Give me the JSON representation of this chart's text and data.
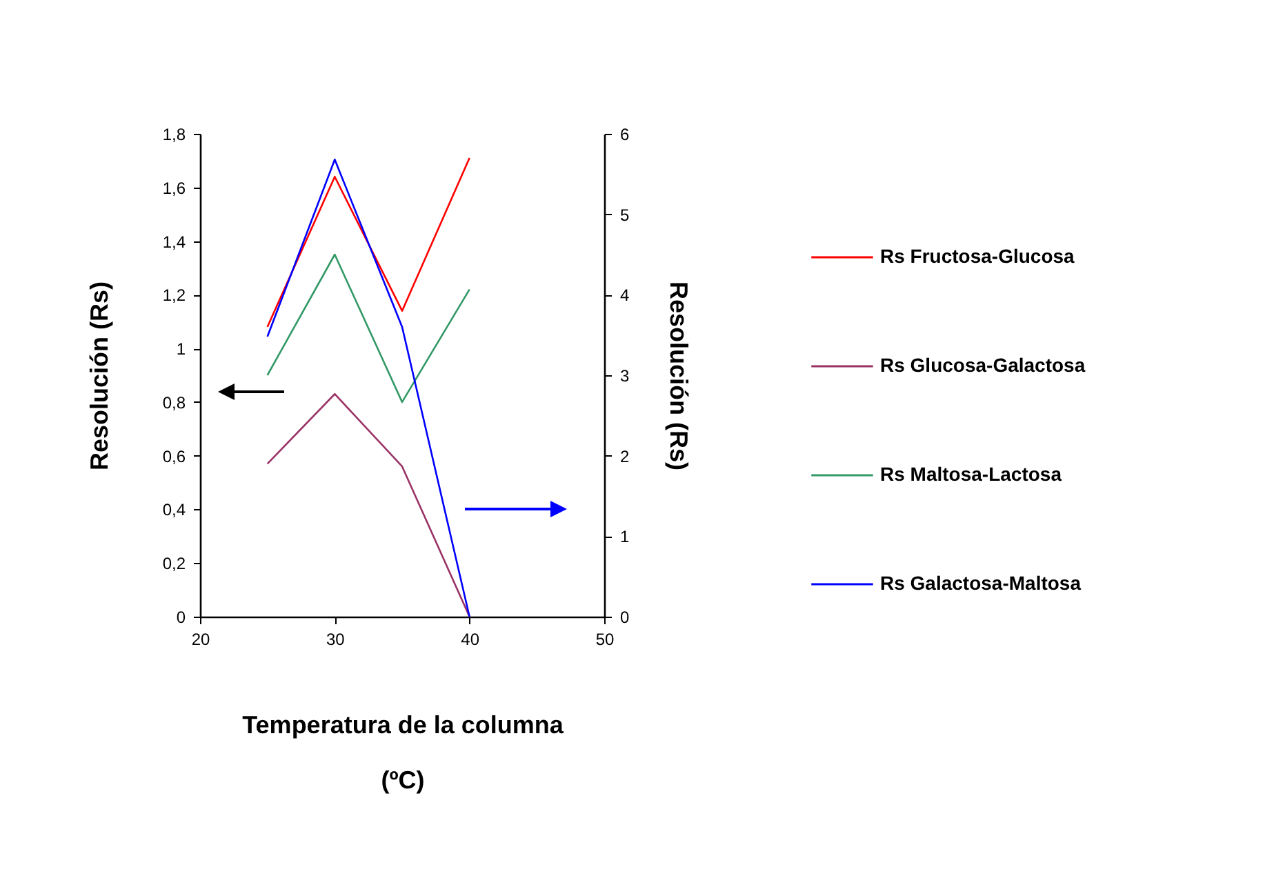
{
  "chart_data": {
    "type": "line",
    "xlabel": "Temperatura de la columna (ºC)",
    "ylabel": "Resolución (Rs)",
    "y2label": "Resolución (Rs)",
    "x": [
      25,
      30,
      35,
      40
    ],
    "series": [
      {
        "name": "Rs Fructosa-Glucosa",
        "color": "#ff0000",
        "values": [
          1.08,
          1.64,
          1.14,
          1.71
        ]
      },
      {
        "name": "Rs Glucosa-Galactosa",
        "color": "#993366",
        "values": [
          0.57,
          0.83,
          0.56,
          0
        ]
      },
      {
        "name": "Rs Maltosa-Lactosa",
        "color": "#339966",
        "values": [
          0.9,
          1.35,
          0.8,
          1.22
        ]
      },
      {
        "name": "Rs Galactosa-Maltosa",
        "color": "#0000ff",
        "axis": "y2",
        "values": [
          3.48,
          5.68,
          3.6,
          0
        ]
      }
    ],
    "xlim": [
      20,
      50
    ],
    "xticks": [
      20,
      30,
      40,
      50
    ],
    "ylim": [
      0,
      1.8
    ],
    "yticks": [
      0,
      {
        "value": 0.2,
        "label": "0,2"
      },
      {
        "value": 0.4,
        "label": "0,4"
      },
      {
        "value": 0.6,
        "label": "0,6"
      },
      {
        "value": 0.8,
        "label": "0,8"
      },
      1,
      {
        "value": 1.2,
        "label": "1,2"
      },
      {
        "value": 1.4,
        "label": "1,4"
      },
      {
        "value": 1.6,
        "label": "1,6"
      },
      {
        "value": 1.8,
        "label": "1,8"
      }
    ],
    "y2lim": [
      0,
      6
    ],
    "y2ticks": [
      0,
      1,
      2,
      3,
      4,
      5,
      6
    ],
    "grid": false,
    "legend": "right",
    "line_style": "solid",
    "marker": "none"
  }
}
